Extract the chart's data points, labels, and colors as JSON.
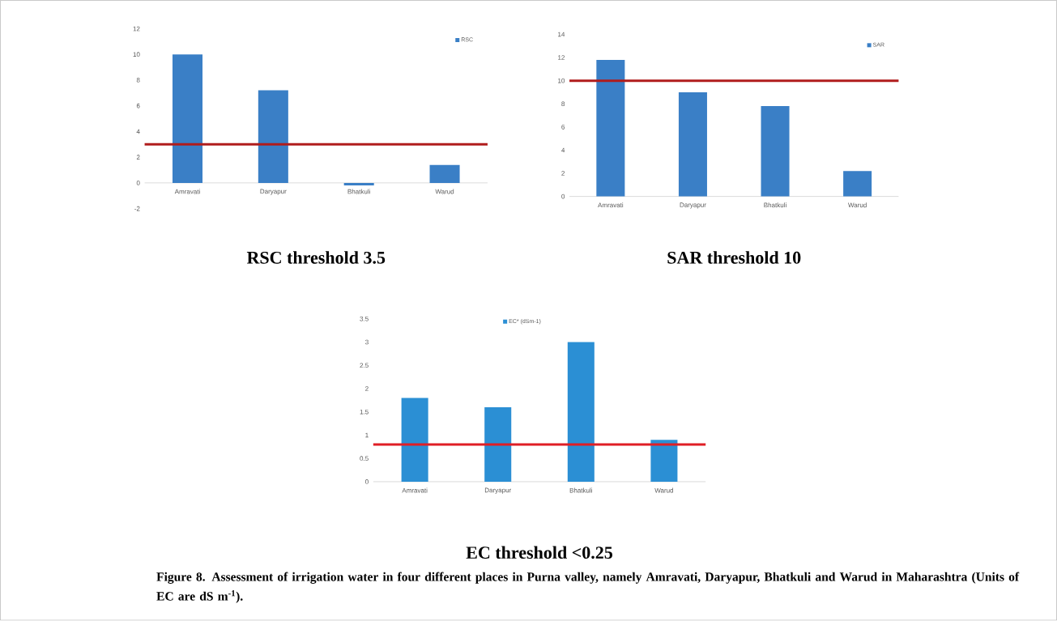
{
  "chart_data": [
    {
      "type": "bar",
      "title": "RSC threshold 3.5",
      "categories": [
        "Amravati",
        "Daryapur",
        "Bhatkuli",
        "Warud"
      ],
      "series": [
        {
          "name": "RSC",
          "color": "#3a7fc6",
          "values": [
            10.0,
            7.2,
            -0.2,
            1.4
          ]
        }
      ],
      "ylim": [
        -2,
        12
      ],
      "yticks": [
        -2,
        0,
        2,
        4,
        6,
        8,
        10,
        12
      ],
      "legend": "top right",
      "ref_lines": [
        {
          "axis": "y",
          "value": 3.0,
          "color": "#b01c1c"
        }
      ]
    },
    {
      "type": "bar",
      "title": "SAR threshold 10",
      "categories": [
        "Amravati",
        "Daryapur",
        "Bhatkuli",
        "Warud"
      ],
      "series": [
        {
          "name": "SAR",
          "color": "#3a7fc6",
          "values": [
            11.8,
            9.0,
            7.8,
            2.2
          ]
        }
      ],
      "ylim": [
        0,
        14
      ],
      "yticks": [
        0,
        2,
        4,
        6,
        8,
        10,
        12,
        14
      ],
      "legend": "top right",
      "ref_lines": [
        {
          "axis": "y",
          "value": 10.0,
          "color": "#b01c1c"
        }
      ]
    },
    {
      "type": "bar",
      "title": "EC  threshold <0.25",
      "categories": [
        "Amravati",
        "Daryapur",
        "Bhatkuli",
        "Warud"
      ],
      "series": [
        {
          "name": "EC* (dSm-1)",
          "color": "#2b8fd4",
          "values": [
            1.8,
            1.6,
            3.0,
            0.9
          ]
        }
      ],
      "ylim": [
        0,
        3.5
      ],
      "yticks": [
        0,
        0.5,
        1,
        1.5,
        2,
        2.5,
        3,
        3.5
      ],
      "legend": "top",
      "ref_lines": [
        {
          "axis": "y",
          "value": 0.8,
          "color": "#e01e25"
        }
      ],
      "annotations": [
        "Figure 8.  Assessment of irrigation water in four different places in Purna valley, namely Amravati, Daryapur, Bhatkuli and Warud in Maharashtra (Units of EC are dS m$^{-1}$)."
      ]
    }
  ]
}
